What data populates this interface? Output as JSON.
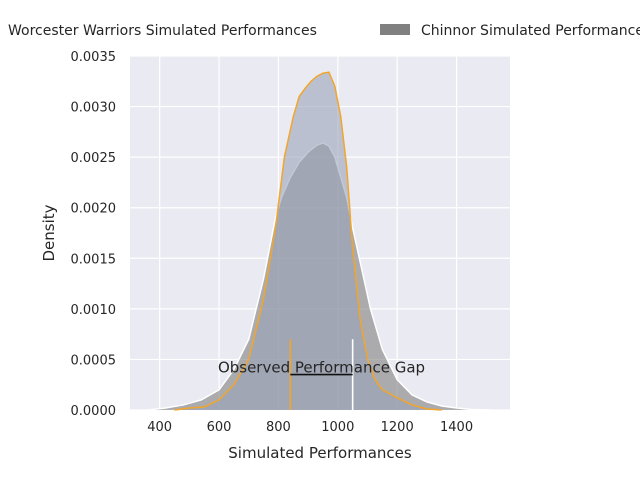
{
  "chart_data": {
    "type": "area",
    "title": "",
    "xlabel": "Simulated Performances",
    "ylabel": "Density",
    "xlim": [
      300,
      1580
    ],
    "ylim": [
      0,
      0.0035
    ],
    "xticks": [
      400,
      600,
      800,
      1000,
      1200,
      1400
    ],
    "yticks": [
      0.0,
      0.0005,
      0.001,
      0.0015,
      0.002,
      0.0025,
      0.003,
      0.0035
    ],
    "xtick_labels": [
      "400",
      "600",
      "800",
      "1000",
      "1200",
      "1400"
    ],
    "ytick_labels": [
      "0.0000",
      "0.0005",
      "0.0010",
      "0.0015",
      "0.0020",
      "0.0025",
      "0.0030",
      "0.0035"
    ],
    "grid": true,
    "legend_placement": "top, above plot",
    "series": [
      {
        "name": "Worcester Warriors Simulated Performances",
        "fill_color": "#9aa3b8",
        "line_color": "#f2a52a",
        "x": [
          450,
          500,
          550,
          600,
          650,
          700,
          750,
          790,
          820,
          850,
          870,
          890,
          910,
          930,
          950,
          970,
          990,
          1010,
          1030,
          1050,
          1075,
          1100,
          1125,
          1150,
          1200,
          1250,
          1300,
          1350
        ],
        "y": [
          0.0,
          2e-05,
          3e-05,
          0.0001,
          0.00025,
          0.0005,
          0.0011,
          0.0018,
          0.0025,
          0.0029,
          0.0031,
          0.00318,
          0.00325,
          0.0033,
          0.00333,
          0.00334,
          0.0032,
          0.0029,
          0.0024,
          0.0016,
          0.0009,
          0.0005,
          0.0003,
          0.0002,
          0.00012,
          5e-05,
          1e-05,
          0.0
        ]
      },
      {
        "name": "Chinnor Simulated Performances",
        "fill_color": "#808080",
        "line_color": "#ffffff",
        "x": [
          360,
          420,
          480,
          540,
          600,
          650,
          700,
          750,
          790,
          810,
          840,
          870,
          900,
          930,
          950,
          970,
          990,
          1010,
          1030,
          1050,
          1080,
          1110,
          1150,
          1200,
          1250,
          1300,
          1350,
          1400,
          1450,
          1520
        ],
        "y": [
          0.0,
          2e-05,
          5e-05,
          0.0001,
          0.0002,
          0.0004,
          0.0007,
          0.0013,
          0.0019,
          0.0021,
          0.0023,
          0.00245,
          0.00255,
          0.00262,
          0.00264,
          0.00261,
          0.0025,
          0.0023,
          0.0021,
          0.0018,
          0.0014,
          0.001,
          0.0006,
          0.0003,
          0.00015,
          8e-05,
          4e-05,
          2e-05,
          5e-06,
          0.0
        ]
      }
    ],
    "annotation": {
      "text": "Observed Performance Gap",
      "x_start": 840,
      "x_end": 1050,
      "y": 0.00035,
      "line_color": "#111111",
      "start_marker": {
        "x": 840,
        "y_top": 0.0007,
        "color": "#f2a52a"
      },
      "end_marker": {
        "x": 1050,
        "y_top": 0.0007,
        "color": "#ffffff"
      }
    }
  }
}
